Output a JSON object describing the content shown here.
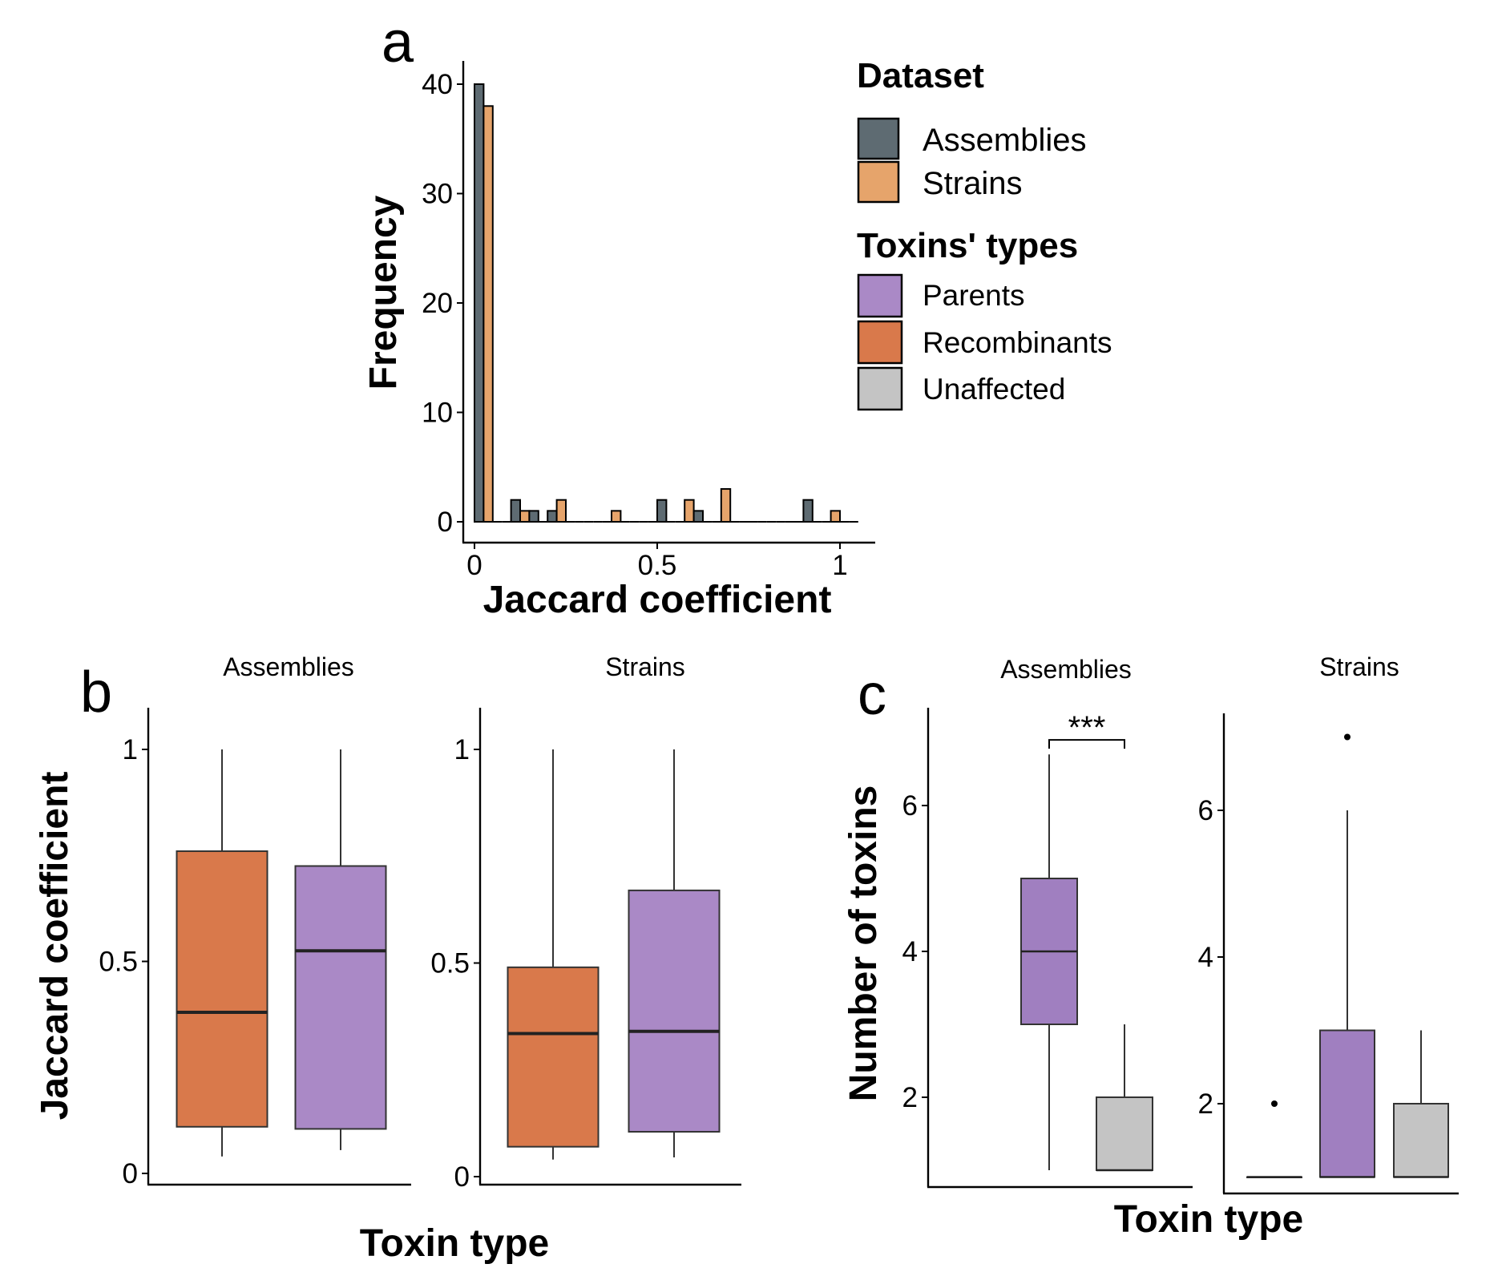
{
  "panel_letters": {
    "a": "a",
    "b": "b",
    "c": "c"
  },
  "colors": {
    "assemblies": "#5e6b72",
    "strains": "#e6a46b",
    "parents": "#aa89c6",
    "parents_c": "#a07fc0",
    "recombinants": "#d9794b",
    "unaffected": "#c4c4c4"
  },
  "legend": {
    "dataset_title": "Dataset",
    "dataset_items": [
      {
        "label": "Assemblies",
        "color_key": "assemblies"
      },
      {
        "label": "Strains",
        "color_key": "strains"
      }
    ],
    "toxins_title": "Toxins' types",
    "toxins_items": [
      {
        "label": "Parents",
        "color_key": "parents"
      },
      {
        "label": "Recombinants",
        "color_key": "recombinants"
      },
      {
        "label": "Unaffected",
        "color_key": "unaffected"
      }
    ]
  },
  "chart_data": [
    {
      "id": "a",
      "type": "bar",
      "xlabel": "Jaccard coefficient",
      "ylabel": "Frequency",
      "xlim": [
        -0.04,
        1.1
      ],
      "ylim": [
        0,
        42
      ],
      "xticks": [
        0,
        0.5,
        1
      ],
      "xtick_labels": [
        "0",
        "0.5",
        "1"
      ],
      "yticks": [
        0,
        10,
        20,
        30,
        40
      ],
      "ytick_labels": [
        "0",
        "10",
        "20",
        "30",
        "40"
      ],
      "bin_width": 0.05,
      "bin_centers": [
        0.025,
        0.075,
        0.125,
        0.175,
        0.225,
        0.275,
        0.325,
        0.375,
        0.425,
        0.475,
        0.525,
        0.575,
        0.625,
        0.675,
        0.725,
        0.775,
        0.825,
        0.875,
        0.925,
        0.975,
        1.025
      ],
      "series": [
        {
          "name": "Assemblies",
          "color_key": "assemblies",
          "values": [
            40,
            0,
            2,
            1,
            1,
            0,
            0,
            0,
            0,
            0,
            2,
            0,
            1,
            0,
            0,
            0,
            0,
            0,
            2,
            0,
            0
          ]
        },
        {
          "name": "Strains",
          "color_key": "strains",
          "values": [
            38,
            0,
            1,
            0,
            2,
            0,
            0,
            1,
            0,
            0,
            0,
            2,
            0,
            3,
            0,
            0,
            0,
            0,
            0,
            1,
            0
          ]
        }
      ],
      "grid": false
    },
    {
      "id": "b",
      "type": "box",
      "ylabel": "Jaccard coefficient",
      "xlabel": "Toxin type",
      "ylim": [
        -0.02,
        1.1
      ],
      "yticks": [
        0,
        0.5,
        1
      ],
      "ytick_labels": [
        "0",
        "0.5",
        "1"
      ],
      "facets": [
        {
          "title": "Assemblies",
          "boxes": [
            {
              "group": "Recombinants",
              "color_key": "recombinants",
              "min": 0.04,
              "q1": 0.11,
              "median": 0.38,
              "q3": 0.76,
              "max": 1.0
            },
            {
              "group": "Parents",
              "color_key": "parents",
              "min": 0.055,
              "q1": 0.105,
              "median": 0.525,
              "q3": 0.725,
              "max": 1.0
            }
          ]
        },
        {
          "title": "Strains",
          "boxes": [
            {
              "group": "Recombinants",
              "color_key": "recombinants",
              "min": 0.04,
              "q1": 0.07,
              "median": 0.335,
              "q3": 0.49,
              "max": 1.0
            },
            {
              "group": "Parents",
              "color_key": "parents",
              "min": 0.045,
              "q1": 0.105,
              "median": 0.34,
              "q3": 0.67,
              "max": 1.0
            }
          ]
        }
      ],
      "grid": false
    },
    {
      "id": "c",
      "type": "box",
      "ylabel": "Number of toxins",
      "xlabel": "Toxin type",
      "facets": [
        {
          "title": "Assemblies",
          "ylim": [
            0.7,
            7.3
          ],
          "yticks": [
            2,
            4,
            6
          ],
          "ytick_labels": [
            "2",
            "4",
            "6"
          ],
          "slots": 2,
          "boxes": [
            {
              "slot": 0,
              "group": "Parents",
              "color_key": "parents_c",
              "min": 1,
              "q1": 3,
              "median": 4,
              "q3": 5,
              "max": 6.7
            },
            {
              "slot": 1,
              "group": "Unaffected",
              "color_key": "unaffected",
              "min": 1,
              "q1": 1,
              "median": 1,
              "q3": 2,
              "max": 3
            }
          ],
          "annotation": {
            "text": "***",
            "from_slot": 0,
            "to_slot": 1,
            "y": 6.9
          }
        },
        {
          "title": "Strains",
          "ylim": [
            0.8,
            7.3
          ],
          "yticks": [
            2,
            4,
            6
          ],
          "ytick_labels": [
            "2",
            "4",
            "6"
          ],
          "slots": 3,
          "boxes": [
            {
              "slot": 0,
              "group": "Recombinants",
              "color_key": "recombinants",
              "min": 1,
              "q1": 1,
              "median": 1,
              "q3": 1,
              "max": 1,
              "outliers": [
                2
              ]
            },
            {
              "slot": 1,
              "group": "Parents",
              "color_key": "parents_c",
              "min": 1,
              "q1": 1,
              "median": 1,
              "q3": 3,
              "max": 6,
              "outliers": [
                7
              ]
            },
            {
              "slot": 2,
              "group": "Unaffected",
              "color_key": "unaffected",
              "min": 1,
              "q1": 1,
              "median": 1,
              "q3": 2,
              "max": 3
            }
          ]
        }
      ],
      "grid": false
    }
  ]
}
